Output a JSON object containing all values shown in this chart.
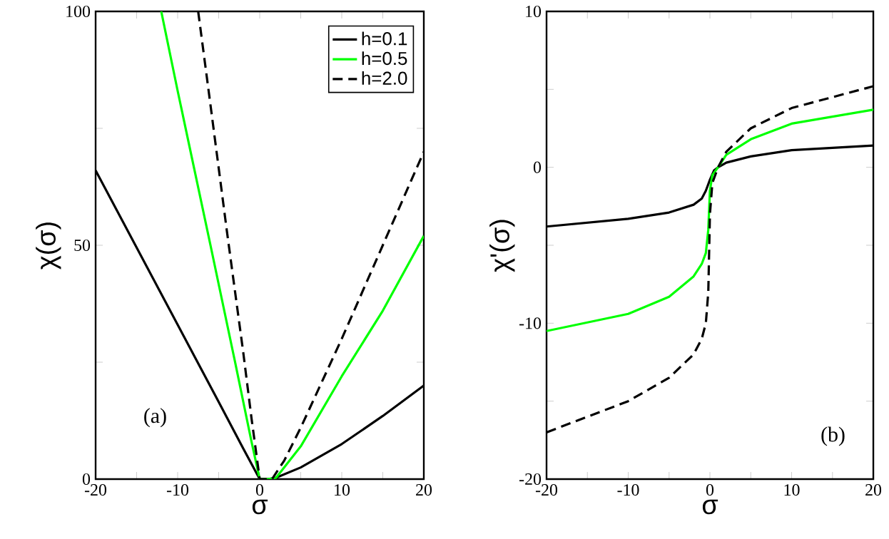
{
  "chart_data": [
    {
      "type": "line",
      "xlabel": "σ",
      "ylabel": "χ(σ)",
      "xlim": [
        -20,
        20
      ],
      "ylim": [
        0,
        100
      ],
      "xticks": [
        -20,
        {
          "value": -15,
          "label": null
        },
        -10,
        {
          "value": -5,
          "label": null
        },
        0,
        {
          "value": 5,
          "label": null
        },
        10,
        {
          "value": 15,
          "label": null
        },
        20
      ],
      "yticks": [
        0,
        {
          "value": 25,
          "label": null
        },
        50,
        {
          "value": 75,
          "label": null
        },
        100
      ],
      "legend": "top right",
      "annotations": [
        "(a)"
      ],
      "series": [
        {
          "name": "h=0.1",
          "color": "#000000",
          "line_style": "solid",
          "x": [
            -20,
            -15,
            -10,
            -5,
            -2,
            0,
            1,
            2,
            5,
            10,
            15,
            20
          ],
          "values": [
            66,
            49.5,
            33,
            16.5,
            6.5,
            0,
            0,
            0.3,
            2.5,
            7.5,
            13.5,
            20
          ]
        },
        {
          "name": "h=0.5",
          "color": "#00ff00",
          "line_style": "solid",
          "x": [
            -12,
            -10,
            -6,
            -3,
            -1,
            0,
            1,
            2,
            5,
            10,
            15,
            20
          ],
          "values": [
            100,
            83,
            50,
            25,
            8,
            0,
            0,
            0.3,
            7,
            22,
            36,
            52
          ]
        },
        {
          "name": "h=2.0",
          "color": "#000000",
          "line_style": "dashed",
          "x": [
            -7.5,
            -6,
            -4,
            -2,
            -1,
            0,
            1,
            1.5,
            3,
            5,
            10,
            15,
            20
          ],
          "values": [
            100,
            80,
            53,
            27,
            13,
            0,
            0,
            0,
            4,
            11,
            30,
            50,
            70
          ]
        }
      ]
    },
    {
      "type": "line",
      "xlabel": "σ",
      "ylabel": "χ'(σ)",
      "xlim": [
        -20,
        20
      ],
      "ylim": [
        -20,
        10
      ],
      "xticks": [
        -20,
        {
          "value": -15,
          "label": null
        },
        -10,
        {
          "value": -5,
          "label": null
        },
        0,
        {
          "value": 5,
          "label": null
        },
        10,
        {
          "value": 15,
          "label": null
        },
        20
      ],
      "yticks": [
        -20,
        {
          "value": -15,
          "label": null
        },
        -10,
        {
          "value": -5,
          "label": null
        },
        0,
        {
          "value": 5,
          "label": null
        },
        10
      ],
      "annotations": [
        "(b)"
      ],
      "series": [
        {
          "color": "#000000",
          "line_style": "solid",
          "x": [
            -20,
            -10,
            -5,
            -2,
            -1,
            -0.5,
            0,
            0.5,
            1,
            2,
            5,
            10,
            20
          ],
          "values": [
            -3.8,
            -3.3,
            -2.9,
            -2.4,
            -2,
            -1.5,
            -0.8,
            -0.2,
            0,
            0.3,
            0.7,
            1.1,
            1.4
          ]
        },
        {
          "color": "#00ff00",
          "line_style": "solid",
          "x": [
            -20,
            -10,
            -5,
            -2,
            -1,
            -0.5,
            -0.2,
            0,
            0.3,
            1,
            2,
            5,
            10,
            20
          ],
          "values": [
            -10.5,
            -9.4,
            -8.3,
            -7,
            -6.2,
            -5.5,
            -4,
            -1.5,
            -0.5,
            0,
            0.8,
            1.8,
            2.8,
            3.7
          ]
        },
        {
          "color": "#000000",
          "line_style": "dashed",
          "x": [
            -20,
            -15,
            -10,
            -5,
            -2,
            -1,
            -0.5,
            -0.2,
            0,
            0.3,
            1,
            2,
            5,
            10,
            20
          ],
          "values": [
            -17,
            -16,
            -15,
            -13.5,
            -12,
            -11,
            -10,
            -8,
            -3,
            -1,
            0,
            1,
            2.5,
            3.8,
            5.2
          ]
        }
      ]
    }
  ]
}
